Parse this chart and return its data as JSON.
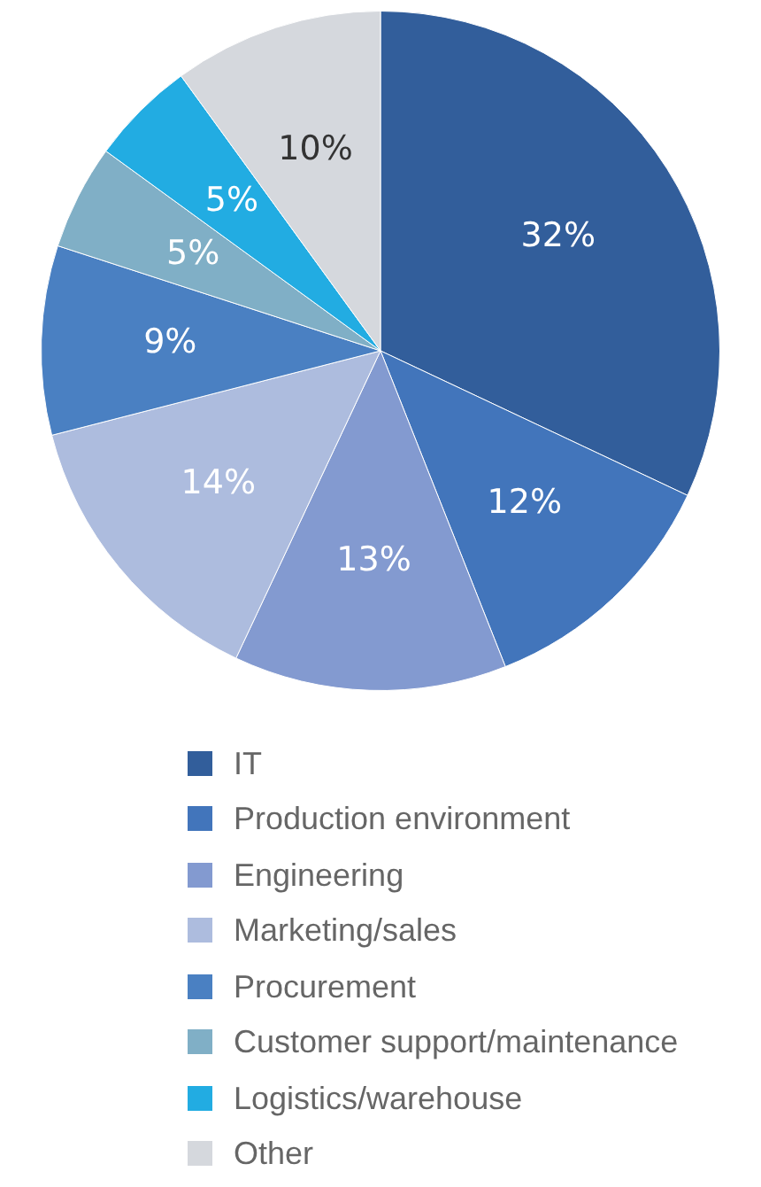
{
  "chart_data": {
    "type": "pie",
    "categories": [
      "IT",
      "Production environment",
      "Engineering",
      "Marketing/sales",
      "Procurement",
      "Customer support/maintenance",
      "Logistics/warehouse",
      "Other"
    ],
    "values": [
      32,
      12,
      13,
      14,
      9,
      5,
      5,
      10
    ],
    "colors": [
      "#325e9b",
      "#4275bb",
      "#839ad0",
      "#adbcde",
      "#4a80c2",
      "#80afc6",
      "#22ace2",
      "#d5d8dd"
    ],
    "value_labels": [
      "32%",
      "12%",
      "13%",
      "14%",
      "9%",
      "5%",
      "5%",
      "10%"
    ],
    "legend": "bottom"
  }
}
